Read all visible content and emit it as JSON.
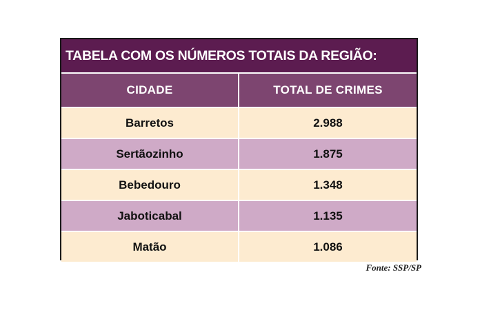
{
  "chart_data": {
    "type": "table",
    "title": "TABELA COM OS NÚMEROS TOTAIS DA REGIÃO:",
    "columns": [
      "CIDADE",
      "TOTAL DE CRIMES"
    ],
    "rows": [
      {
        "cidade": "Barretos",
        "total": "2.988"
      },
      {
        "cidade": "Sertãozinho",
        "total": "1.875"
      },
      {
        "cidade": "Bebedouro",
        "total": "1.348"
      },
      {
        "cidade": "Jaboticabal",
        "total": "1.135"
      },
      {
        "cidade": "Matão",
        "total": "1.086"
      }
    ],
    "categories": [
      "Barretos",
      "Sertãozinho",
      "Bebedouro",
      "Jaboticabal",
      "Matão"
    ],
    "values": [
      2988,
      1875,
      1348,
      1135,
      1086
    ],
    "source": "Fonte: SSP/SP"
  },
  "colors": {
    "title_background": "#5c1c50",
    "header_background": "#7d4570",
    "row_light": "#fdebd0",
    "row_purple": "#cfaac7"
  }
}
